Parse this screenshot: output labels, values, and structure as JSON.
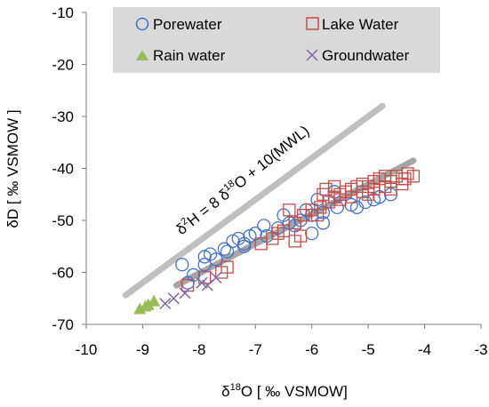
{
  "chart_data": {
    "type": "scatter",
    "xlabel_parts": [
      "δ",
      "18",
      "O  [ ‰ VSMOW]"
    ],
    "ylabel": "δD  [ ‰ VSMOW ]",
    "xlim": [
      -10,
      -3
    ],
    "ylim": [
      -70,
      -10
    ],
    "xticks": [
      -10,
      -9,
      -8,
      -7,
      -6,
      -5,
      -4,
      -3
    ],
    "yticks": [
      -70,
      -60,
      -50,
      -40,
      -30,
      -20,
      -10
    ],
    "grid": false,
    "legend_position": "top",
    "annotation": {
      "parts": [
        "δ",
        "2",
        "H = 8 δ",
        "18",
        "O + 10(MWL)"
      ]
    },
    "lines": [
      {
        "kind": "mwl",
        "color": "#bfbfbf",
        "x": [
          -9.3,
          -4.75
        ],
        "y": [
          -64.4,
          -28.0
        ]
      },
      {
        "kind": "regression",
        "color": "#a6a6a6",
        "x": [
          -8.4,
          -4.2
        ],
        "y": [
          -62.5,
          -38.5
        ]
      }
    ],
    "series": [
      {
        "name": "Porewater",
        "marker": "circle",
        "color": "#4472c4",
        "points": [
          [
            -8.3,
            -58.5
          ],
          [
            -8.1,
            -60.5
          ],
          [
            -8.2,
            -62.0
          ],
          [
            -7.9,
            -57.0
          ],
          [
            -7.8,
            -56.5
          ],
          [
            -7.7,
            -57.5
          ],
          [
            -7.55,
            -55.5
          ],
          [
            -7.4,
            -54.0
          ],
          [
            -7.3,
            -53.5
          ],
          [
            -7.2,
            -54.5
          ],
          [
            -7.1,
            -53.0
          ],
          [
            -7.0,
            -52.5
          ],
          [
            -6.85,
            -51.0
          ],
          [
            -6.6,
            -51.5
          ],
          [
            -6.4,
            -50.5
          ],
          [
            -6.2,
            -50.0
          ],
          [
            -6.0,
            -49.0
          ],
          [
            -5.8,
            -48.5
          ],
          [
            -5.55,
            -47.5
          ],
          [
            -5.3,
            -47.0
          ],
          [
            -5.05,
            -46.5
          ],
          [
            -4.8,
            -45.5
          ],
          [
            -4.6,
            -45.0
          ],
          [
            -6.5,
            -49.0
          ],
          [
            -6.3,
            -51.0
          ],
          [
            -5.6,
            -44.5
          ],
          [
            -5.9,
            -46.0
          ],
          [
            -6.8,
            -53.0
          ],
          [
            -7.5,
            -56.0
          ],
          [
            -7.9,
            -58.5
          ],
          [
            -6.0,
            -52.5
          ],
          [
            -5.8,
            -50.5
          ],
          [
            -4.9,
            -46.0
          ],
          [
            -5.2,
            -47.5
          ],
          [
            -6.1,
            -48.0
          ],
          [
            -7.2,
            -55.0
          ]
        ]
      },
      {
        "name": "Lake Water",
        "marker": "square",
        "color": "#c0504d",
        "points": [
          [
            -8.2,
            -62.5
          ],
          [
            -7.9,
            -61.0
          ],
          [
            -7.5,
            -59.0
          ],
          [
            -6.9,
            -54.5
          ],
          [
            -6.7,
            -53.5
          ],
          [
            -6.5,
            -52.0
          ],
          [
            -6.3,
            -50.5
          ],
          [
            -6.15,
            -49.0
          ],
          [
            -6.0,
            -48.0
          ],
          [
            -5.85,
            -47.5
          ],
          [
            -5.7,
            -46.5
          ],
          [
            -5.6,
            -45.5
          ],
          [
            -5.5,
            -45.0
          ],
          [
            -5.4,
            -44.5
          ],
          [
            -5.3,
            -44.0
          ],
          [
            -5.2,
            -43.5
          ],
          [
            -5.1,
            -43.0
          ],
          [
            -5.0,
            -43.5
          ],
          [
            -4.9,
            -42.5
          ],
          [
            -4.8,
            -42.0
          ],
          [
            -4.7,
            -41.5
          ],
          [
            -4.6,
            -42.5
          ],
          [
            -4.5,
            -41.5
          ],
          [
            -4.4,
            -42.0
          ],
          [
            -4.3,
            -41.0
          ],
          [
            -5.0,
            -45.0
          ],
          [
            -5.3,
            -45.5
          ],
          [
            -5.5,
            -46.0
          ],
          [
            -5.8,
            -45.0
          ],
          [
            -4.6,
            -44.0
          ],
          [
            -4.4,
            -43.0
          ],
          [
            -4.9,
            -44.0
          ],
          [
            -5.6,
            -43.5
          ],
          [
            -6.2,
            -53.0
          ],
          [
            -6.6,
            -52.5
          ],
          [
            -5.9,
            -49.0
          ],
          [
            -6.4,
            -48.0
          ],
          [
            -4.7,
            -43.5
          ],
          [
            -4.2,
            -41.5
          ],
          [
            -5.1,
            -44.5
          ],
          [
            -5.75,
            -44.0
          ],
          [
            -4.35,
            -42.0
          ],
          [
            -6.3,
            -54.0
          ],
          [
            -7.6,
            -60.0
          ]
        ]
      },
      {
        "name": "Rain water",
        "marker": "triangle",
        "color": "#9bbb59",
        "points": [
          [
            -9.05,
            -67.0
          ],
          [
            -8.95,
            -66.5
          ],
          [
            -8.9,
            -66.2
          ],
          [
            -8.8,
            -65.5
          ]
        ]
      },
      {
        "name": "Groundwater",
        "marker": "x",
        "color": "#8064a2",
        "points": [
          [
            -8.6,
            -66.0
          ],
          [
            -8.45,
            -65.0
          ],
          [
            -8.25,
            -64.0
          ],
          [
            -7.95,
            -62.0
          ],
          [
            -7.85,
            -62.5
          ],
          [
            -7.7,
            -61.0
          ]
        ]
      }
    ]
  }
}
